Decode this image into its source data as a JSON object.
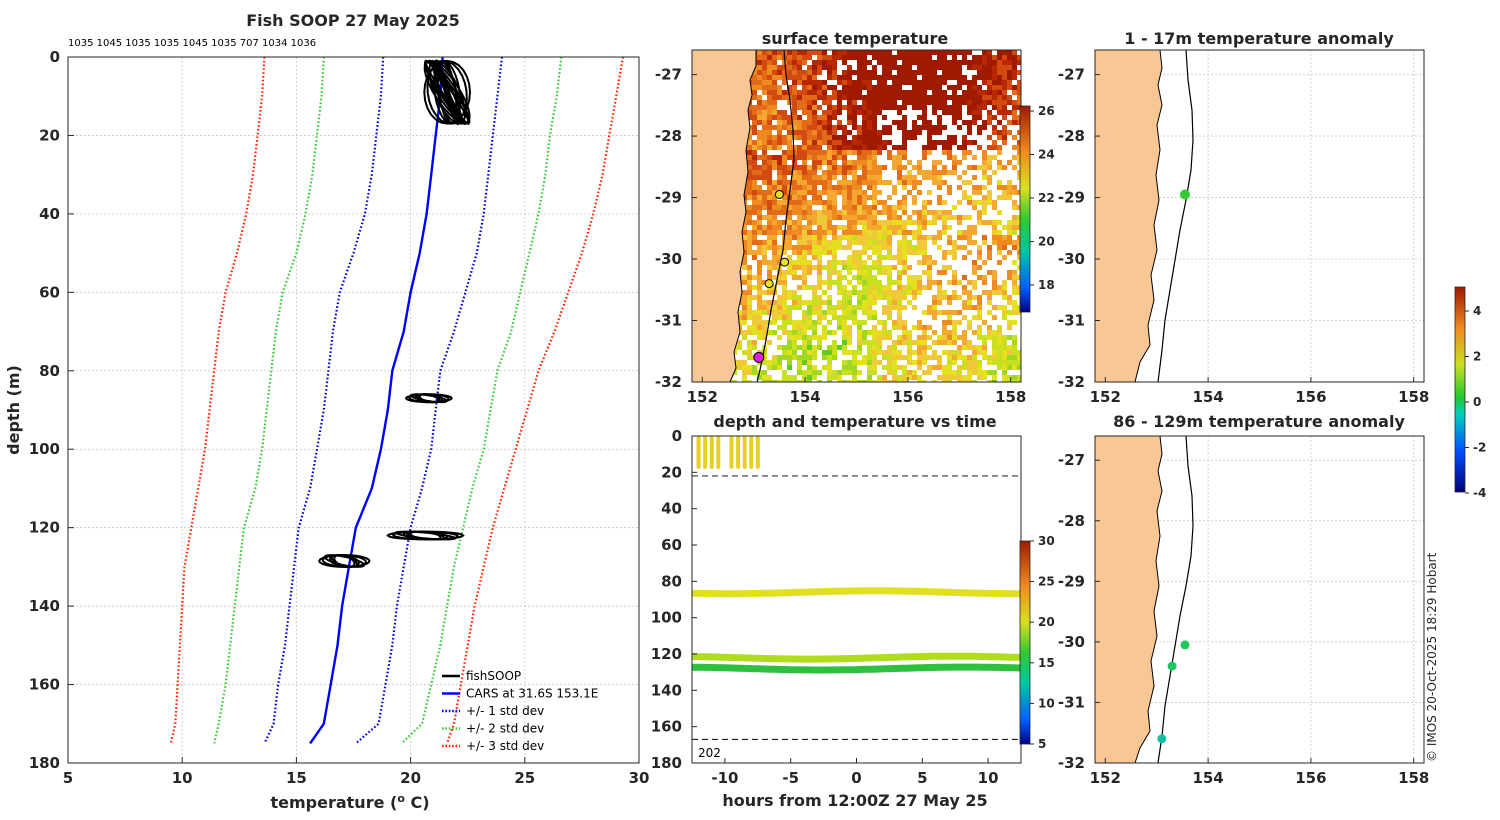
{
  "profile": {
    "title": "Fish SOOP 27 May 2025",
    "sensor_ids": "1035 1045 1035 1035 1045 1035 707 1034 1036",
    "xlabel": "temperature (",
    "xlabel_sup": "o",
    "xlabel_tail": " C)",
    "ylabel": "depth (m)",
    "legend": [
      {
        "label": "fishSOOP",
        "color": "#000000",
        "style": "solid"
      },
      {
        "label": "CARS at 31.6S 153.1E",
        "color": "#0000ff",
        "style": "solid"
      },
      {
        "label": "+/- 1 std dev",
        "color": "#0000cc",
        "style": "dotted"
      },
      {
        "label": "+/- 2 std dev",
        "color": "#33cc33",
        "style": "dotted"
      },
      {
        "label": "+/- 3 std dev",
        "color": "#ff2200",
        "style": "dotted"
      }
    ]
  },
  "sst_map": {
    "title": "surface temperature",
    "colorbar_ticks": [
      "26",
      "24",
      "22",
      "20",
      "18"
    ]
  },
  "time_depth": {
    "title": "depth and temperature vs time",
    "xlabel": "hours from 12:00Z 27 May 25",
    "footnote": "202",
    "colorbar_ticks": [
      "30",
      "25",
      "20",
      "15",
      "10",
      "5"
    ]
  },
  "anom_top": {
    "title": "1 - 17m temperature anomaly"
  },
  "anom_bottom": {
    "title": "86 - 129m temperature anomaly"
  },
  "anom_colorbar_ticks": [
    "4",
    "2",
    "0",
    "-2",
    "-4"
  ],
  "map_x_ticks": [
    "152",
    "154",
    "156",
    "158"
  ],
  "map_y_ticks": [
    "-27",
    "-28",
    "-29",
    "-30",
    "-31",
    "-32"
  ],
  "copyright": "© IMOS 20-Oct-2025 18:29 Hobart",
  "chart_data": [
    {
      "type": "line",
      "name": "temperature profile",
      "xlim": [
        5,
        30
      ],
      "ylim": [
        0,
        180
      ],
      "y_reversed": true,
      "x_ticks": [
        5,
        10,
        15,
        20,
        25,
        30
      ],
      "y_ticks": [
        0,
        20,
        40,
        60,
        80,
        100,
        120,
        140,
        160,
        180
      ],
      "grid": true,
      "depth": [
        0,
        10,
        20,
        30,
        40,
        50,
        60,
        70,
        80,
        90,
        100,
        110,
        120,
        130,
        140,
        150,
        160,
        170,
        175
      ],
      "series": [
        {
          "name": "CARS at 31.6S 153.1E",
          "style": "solid",
          "color": "#0000ff",
          "values": [
            21.4,
            21.3,
            21.1,
            20.9,
            20.7,
            20.4,
            20.0,
            19.7,
            19.2,
            19.0,
            18.7,
            18.3,
            17.6,
            17.3,
            17.0,
            16.8,
            16.5,
            16.2,
            15.6
          ]
        },
        {
          "name": "-1 std dev",
          "style": "dotted",
          "color": "#0000cc",
          "values": [
            18.8,
            18.7,
            18.5,
            18.3,
            18.0,
            17.5,
            16.9,
            16.6,
            16.4,
            16.2,
            15.9,
            15.6,
            15.1,
            14.9,
            14.7,
            14.5,
            14.2,
            14.0,
            13.6
          ]
        },
        {
          "name": "+1 std dev",
          "style": "dotted",
          "color": "#0000cc",
          "values": [
            24.0,
            23.8,
            23.6,
            23.4,
            23.2,
            22.9,
            22.4,
            21.9,
            21.3,
            21.1,
            20.9,
            20.5,
            20.0,
            19.7,
            19.4,
            19.2,
            18.9,
            18.6,
            17.6
          ]
        },
        {
          "name": "-2 std dev",
          "style": "dotted",
          "color": "#33cc33",
          "values": [
            16.2,
            16.1,
            15.9,
            15.7,
            15.4,
            15.0,
            14.4,
            14.1,
            13.9,
            13.7,
            13.5,
            13.2,
            12.7,
            12.5,
            12.3,
            12.1,
            11.9,
            11.6,
            11.4
          ]
        },
        {
          "name": "+2 std dev",
          "style": "dotted",
          "color": "#33cc33",
          "values": [
            26.6,
            26.4,
            26.1,
            25.9,
            25.6,
            25.2,
            24.8,
            24.4,
            23.8,
            23.5,
            23.2,
            22.7,
            22.3,
            21.9,
            21.6,
            21.3,
            20.9,
            20.5,
            19.6
          ]
        },
        {
          "name": "-3 std dev",
          "style": "dotted",
          "color": "#ff2200",
          "values": [
            13.6,
            13.5,
            13.3,
            13.1,
            12.8,
            12.4,
            11.9,
            11.6,
            11.4,
            11.2,
            11.0,
            10.7,
            10.4,
            10.1,
            10.0,
            9.9,
            9.8,
            9.7,
            9.5
          ]
        },
        {
          "name": "+3 std dev",
          "style": "dotted",
          "color": "#ff2200",
          "values": [
            29.3,
            29.0,
            28.7,
            28.4,
            28.0,
            27.5,
            26.9,
            26.3,
            25.6,
            25.1,
            24.6,
            24.1,
            23.6,
            23.2,
            22.8,
            22.5,
            22.2,
            21.9,
            21.6
          ]
        }
      ],
      "fishSOOP_clusters": [
        {
          "depth_range": [
            1,
            17
          ],
          "temp_range": [
            20.6,
            22.6
          ]
        },
        {
          "depth_range": [
            86,
            88
          ],
          "temp_range": [
            19.8,
            21.8
          ]
        },
        {
          "depth_range": [
            121,
            123
          ],
          "temp_range": [
            19.0,
            22.3
          ]
        },
        {
          "depth_range": [
            127,
            130
          ],
          "temp_range": [
            16.0,
            18.2
          ]
        }
      ]
    },
    {
      "type": "heatmap",
      "name": "surface temperature",
      "x_ticks": [
        152,
        154,
        156,
        158
      ],
      "y_ticks": [
        -27,
        -28,
        -29,
        -30,
        -31,
        -32
      ],
      "xlim": [
        151.8,
        158.2
      ],
      "ylim": [
        -32,
        -26.6
      ],
      "colorbar_range": [
        17,
        26
      ],
      "stations": [
        {
          "lon": 153.5,
          "lat": -28.95
        },
        {
          "lon": 153.6,
          "lat": -30.05
        },
        {
          "lon": 153.3,
          "lat": -30.4
        },
        {
          "lon": 153.1,
          "lat": -31.6,
          "highlight": true
        }
      ]
    },
    {
      "type": "scatter",
      "name": "depth and temperature vs time",
      "xlim": [
        -12.5,
        12.5
      ],
      "ylim": [
        0,
        180
      ],
      "y_reversed": true,
      "x_ticks": [
        -10,
        -5,
        0,
        5,
        10
      ],
      "y_ticks": [
        0,
        20,
        40,
        60,
        80,
        100,
        120,
        140,
        160,
        180
      ],
      "colorbar_range": [
        4,
        30
      ],
      "bands": [
        {
          "depth": 86,
          "temp": 21
        },
        {
          "depth": 122,
          "temp": 20.5
        },
        {
          "depth": 128,
          "temp": 16
        }
      ],
      "dashed_depths": [
        22,
        86,
        167
      ]
    },
    {
      "type": "scatter",
      "name": "1 - 17m temperature anomaly",
      "x_ticks": [
        152,
        154,
        156,
        158
      ],
      "y_ticks": [
        -27,
        -28,
        -29,
        -30,
        -31,
        -32
      ],
      "points": [
        {
          "lon": 153.55,
          "lat": -28.95,
          "anomaly": 0.5
        }
      ]
    },
    {
      "type": "scatter",
      "name": "86 - 129m temperature anomaly",
      "x_ticks": [
        152,
        154,
        156,
        158
      ],
      "y_ticks": [
        -27,
        -28,
        -29,
        -30,
        -31,
        -32
      ],
      "colorbar_range": [
        -4,
        5
      ],
      "points": [
        {
          "lon": 153.55,
          "lat": -30.05,
          "anomaly": 0.3
        },
        {
          "lon": 153.3,
          "lat": -30.4,
          "anomaly": 0.2
        },
        {
          "lon": 153.1,
          "lat": -31.6,
          "anomaly": -0.8
        }
      ]
    }
  ]
}
